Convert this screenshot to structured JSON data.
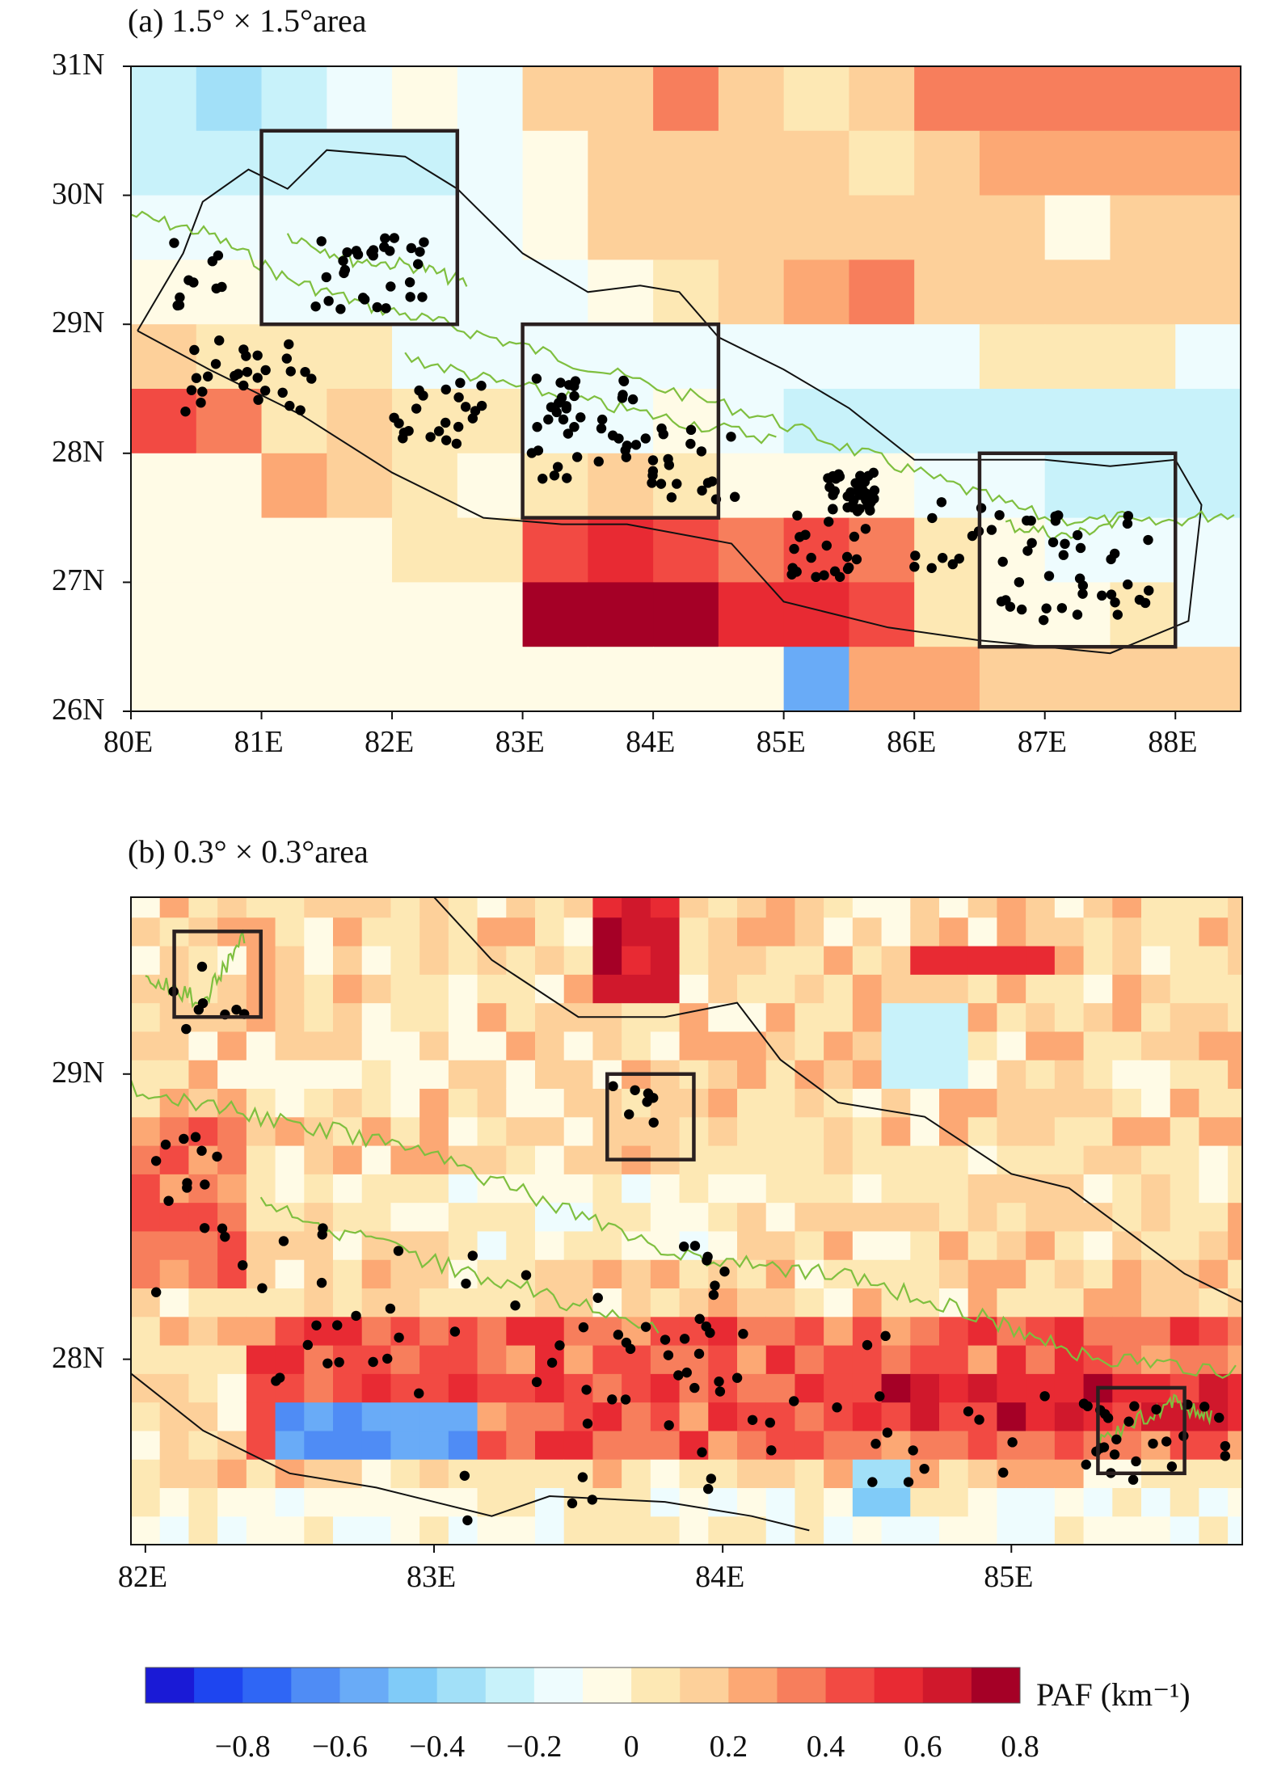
{
  "panels": [
    {
      "id": "a",
      "title": "(a) 1.5° × 1.5°area",
      "lon_range": [
        80,
        88.5
      ],
      "lat_range": [
        26,
        31
      ],
      "xticks": [
        "80E",
        "81E",
        "82E",
        "83E",
        "84E",
        "85E",
        "86E",
        "87E",
        "88E"
      ],
      "yticks": [
        "31N",
        "30N",
        "29N",
        "28N",
        "27N",
        "26N"
      ]
    },
    {
      "id": "b",
      "title": "(b) 0.3° × 0.3°area",
      "lon_range": [
        81.95,
        85.8
      ],
      "lat_range": [
        27.35,
        29.62
      ],
      "xticks": [
        "82E",
        "83E",
        "84E",
        "85E"
      ],
      "yticks": [
        "29N",
        "28N"
      ]
    }
  ],
  "colorbar": {
    "label": "PAF (km⁻¹)",
    "ticks": [
      "−0.8",
      "−0.6",
      "−0.4",
      "−0.2",
      "0",
      "0.2",
      "0.4",
      "0.6",
      "0.8"
    ],
    "colors": [
      "#1a1ad6",
      "#1e45f0",
      "#2f66f5",
      "#4f8cf5",
      "#69abf7",
      "#80cbf8",
      "#a2e0f8",
      "#c8f2fa",
      "#eefcfe",
      "#fffbe6",
      "#fde8b4",
      "#fdd09a",
      "#fca874",
      "#f77e5c",
      "#f24a43",
      "#e82a33",
      "#d0182c",
      "#a50026"
    ]
  }
}
